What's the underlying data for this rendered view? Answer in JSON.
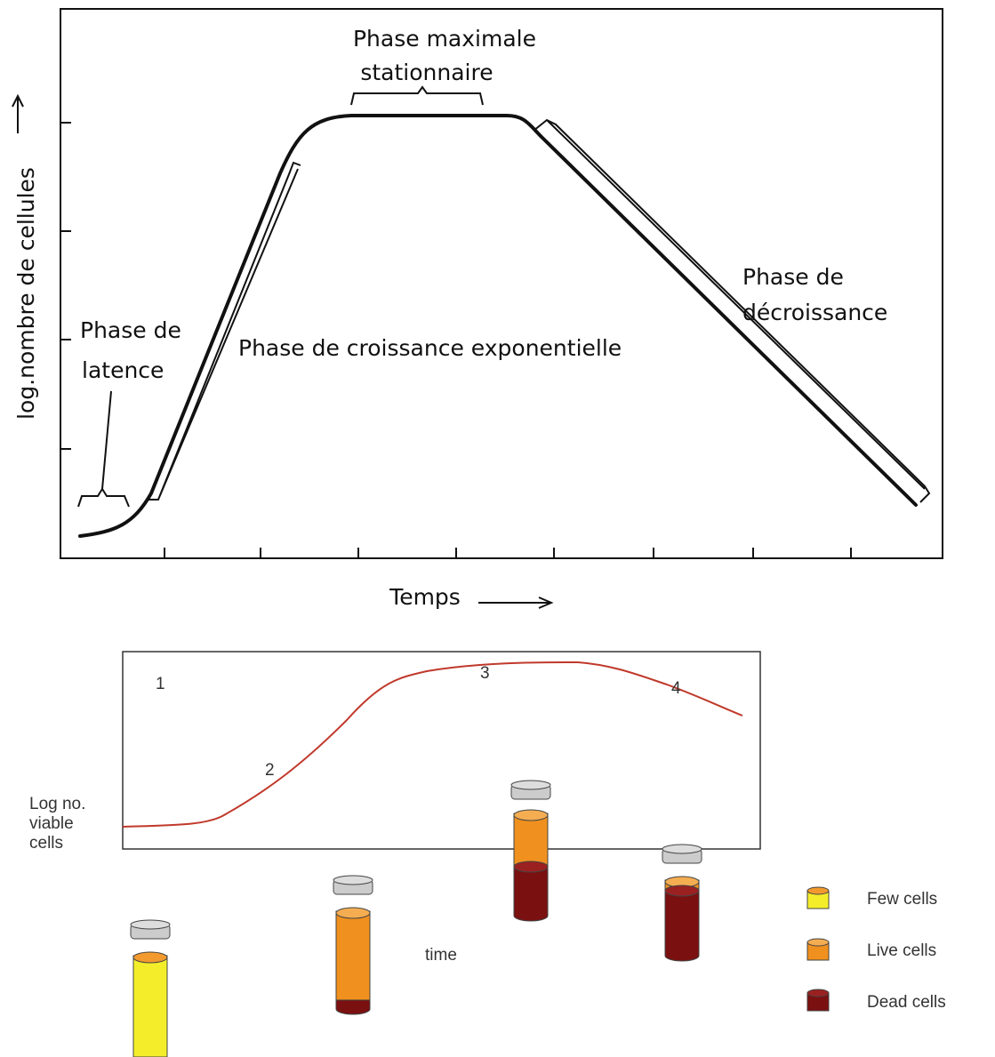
{
  "top_diagram": {
    "y_axis_label": "log.nombre de cellules",
    "x_axis_label": "Temps",
    "stationary_phase": [
      "Phase maximale",
      "stationnaire"
    ],
    "lag_phase": [
      "Phase de",
      "latence"
    ],
    "exponential_phase": "Phase de croissance exponentielle",
    "decline_phase": [
      "Phase de",
      "décroissance"
    ]
  },
  "bottom_diagram": {
    "y_axis_label": [
      "Log no.",
      "viable",
      "cells"
    ],
    "x_axis_label": "time",
    "stage_labels": [
      "1",
      "2",
      "3",
      "4"
    ],
    "legend": [
      "Few cells",
      "Live cells",
      "Dead cells"
    ]
  }
}
